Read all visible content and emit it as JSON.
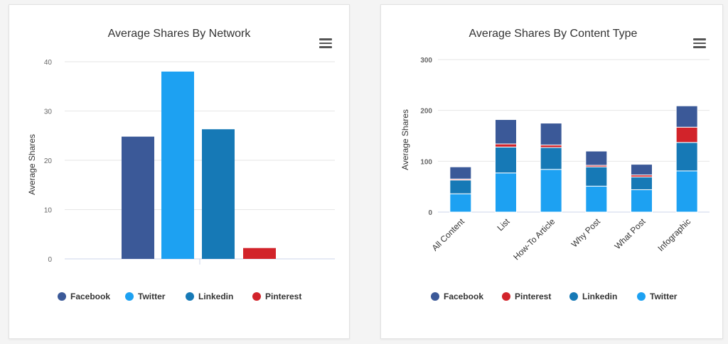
{
  "chart_data": [
    {
      "type": "bar",
      "title": "Average Shares By Network",
      "ylabel": "Average Shares",
      "ylim": [
        0,
        40
      ],
      "yticks": [
        "0",
        "10",
        "20",
        "30",
        "40"
      ],
      "grid": true,
      "legend_position": "bottom",
      "series": [
        {
          "name": "Facebook",
          "value": 24.8,
          "color": "#3b5998"
        },
        {
          "name": "Twitter",
          "value": 38,
          "color": "#1da1f2"
        },
        {
          "name": "Linkedin",
          "value": 26.3,
          "color": "#1679b6"
        },
        {
          "name": "Pinterest",
          "value": 2.2,
          "color": "#d2232a"
        }
      ]
    },
    {
      "type": "bar",
      "stacked": true,
      "title": "Average Shares By Content Type",
      "ylabel": "Average Shares",
      "ylim": [
        0,
        300
      ],
      "yticks": [
        "0",
        "100",
        "200",
        "300"
      ],
      "grid": true,
      "legend_position": "bottom",
      "categories": [
        "All Content",
        "List",
        "How-To Article",
        "Why Post",
        "What Post",
        "Infographic"
      ],
      "series": [
        {
          "name": "Facebook",
          "color": "#3b5998",
          "values": [
            24,
            48,
            43,
            28,
            21,
            42
          ]
        },
        {
          "name": "Pinterest",
          "color": "#d2232a",
          "values": [
            2,
            6,
            5,
            3,
            4,
            30
          ]
        },
        {
          "name": "Linkedin",
          "color": "#1679b6",
          "values": [
            27,
            51,
            43,
            38,
            25,
            56
          ]
        },
        {
          "name": "Twitter",
          "color": "#1da1f2",
          "values": [
            36,
            77,
            84,
            51,
            44,
            81
          ]
        }
      ],
      "stack_order": [
        "Twitter",
        "Linkedin",
        "Pinterest",
        "Facebook"
      ]
    }
  ]
}
